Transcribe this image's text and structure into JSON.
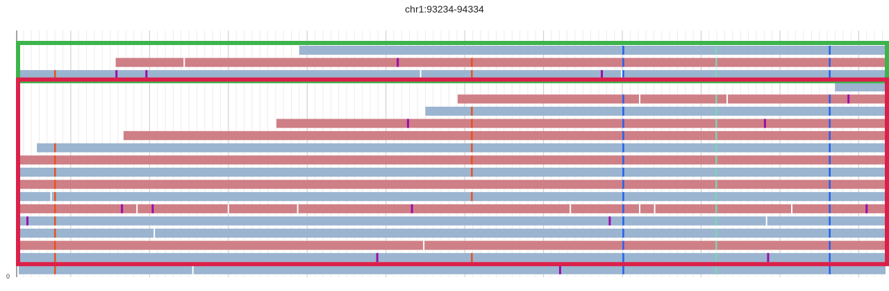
{
  "title": "chr1:93234-94334",
  "y_axis": {
    "zero_label": "0"
  },
  "colors": {
    "forward_read": "#cf7f86",
    "reverse_read": "#9bb4d0",
    "selection_green": "#3cb44b",
    "selection_red": "#dc1f4a",
    "mismatch_orange": "#e8521d",
    "mismatch_blue": "#1f62f0",
    "mismatch_teal": "#7fd3b2",
    "insertion_purple": "#9a0fa6",
    "deletion_white": "#ffffff",
    "grid_minor": "#ececec",
    "grid_major": "#c8c8c8"
  },
  "groups": [
    {
      "name": "green-group",
      "color": "selection_green",
      "rows": [
        0,
        2
      ]
    },
    {
      "name": "red-group",
      "color": "selection_red",
      "rows": [
        3,
        17
      ]
    }
  ],
  "chart_data": {
    "type": "pileup",
    "region": {
      "chrom": "chr1",
      "start": 93234,
      "end": 94334
    },
    "reads": [
      {
        "row": 0,
        "start": 93590,
        "end": 94334,
        "strand": "-"
      },
      {
        "row": 1,
        "start": 93357,
        "end": 94334,
        "strand": "+"
      },
      {
        "row": 2,
        "start": 93234,
        "end": 94334,
        "strand": "-"
      },
      {
        "row": 3,
        "start": 94394,
        "end": 94334,
        "strand": "-",
        "note": "clipped"
      },
      {
        "row": 3,
        "start": 94391,
        "end": 94334,
        "strand": "-"
      },
      {
        "row": 4,
        "start": 93791,
        "end": 94334,
        "strand": "+"
      },
      {
        "row": 5,
        "start": 93750,
        "end": 94334,
        "strand": "-"
      },
      {
        "row": 6,
        "start": 93561,
        "end": 94334,
        "strand": "+"
      },
      {
        "row": 7,
        "start": 93367,
        "end": 94334,
        "strand": "+"
      },
      {
        "row": 8,
        "start": 93257,
        "end": 94334,
        "strand": "-"
      },
      {
        "row": 9,
        "start": 93234,
        "end": 94334,
        "strand": "+"
      },
      {
        "row": 10,
        "start": 93234,
        "end": 94334,
        "strand": "-"
      },
      {
        "row": 11,
        "start": 93234,
        "end": 94334,
        "strand": "+"
      },
      {
        "row": 12,
        "start": 93234,
        "end": 94334,
        "strand": "-"
      },
      {
        "row": 13,
        "start": 93234,
        "end": 94334,
        "strand": "+"
      },
      {
        "row": 14,
        "start": 93234,
        "end": 94334,
        "strand": "-"
      },
      {
        "row": 15,
        "start": 93234,
        "end": 94334,
        "strand": "-"
      },
      {
        "row": 16,
        "start": 93234,
        "end": 94334,
        "strand": "+"
      },
      {
        "row": 17,
        "start": 93234,
        "end": 94334,
        "strand": "-"
      },
      {
        "row": 18,
        "start": 93234,
        "end": 94334,
        "strand": "-"
      }
    ],
    "variant_columns": [
      {
        "pos": 94001,
        "kind": "mismatch",
        "color": "mismatch_blue"
      },
      {
        "pos": 94119,
        "kind": "mismatch",
        "color": "mismatch_teal"
      },
      {
        "pos": 94263,
        "kind": "mismatch",
        "color": "mismatch_blue"
      }
    ],
    "marks": [
      {
        "row": 1,
        "pos": 93444,
        "kind": "deletion"
      },
      {
        "row": 1,
        "pos": 93715,
        "kind": "insertion"
      },
      {
        "row": 1,
        "pos": 93809,
        "kind": "mismatch",
        "color": "mismatch_orange"
      },
      {
        "row": 2,
        "pos": 93280,
        "kind": "mismatch",
        "color": "mismatch_orange"
      },
      {
        "row": 2,
        "pos": 93358,
        "kind": "insertion"
      },
      {
        "row": 2,
        "pos": 93396,
        "kind": "insertion"
      },
      {
        "row": 2,
        "pos": 93744,
        "kind": "deletion"
      },
      {
        "row": 2,
        "pos": 93809,
        "kind": "mismatch",
        "color": "mismatch_orange"
      },
      {
        "row": 2,
        "pos": 93974,
        "kind": "insertion"
      },
      {
        "row": 2,
        "pos": 93999,
        "kind": "deletion"
      },
      {
        "row": 4,
        "pos": 94022,
        "kind": "deletion"
      },
      {
        "row": 4,
        "pos": 94133,
        "kind": "deletion"
      },
      {
        "row": 4,
        "pos": 94287,
        "kind": "insertion"
      },
      {
        "row": 5,
        "pos": 93809,
        "kind": "mismatch",
        "color": "mismatch_orange"
      },
      {
        "row": 6,
        "pos": 93728,
        "kind": "insertion"
      },
      {
        "row": 6,
        "pos": 93809,
        "kind": "mismatch",
        "color": "mismatch_orange"
      },
      {
        "row": 6,
        "pos": 94181,
        "kind": "insertion"
      },
      {
        "row": 7,
        "pos": 93809,
        "kind": "mismatch",
        "color": "mismatch_orange"
      },
      {
        "row": 8,
        "pos": 93280,
        "kind": "mismatch",
        "color": "mismatch_orange"
      },
      {
        "row": 8,
        "pos": 93809,
        "kind": "mismatch",
        "color": "mismatch_orange"
      },
      {
        "row": 9,
        "pos": 93280,
        "kind": "mismatch",
        "color": "mismatch_orange"
      },
      {
        "row": 9,
        "pos": 93809,
        "kind": "mismatch",
        "color": "mismatch_orange"
      },
      {
        "row": 10,
        "pos": 93280,
        "kind": "mismatch",
        "color": "mismatch_orange"
      },
      {
        "row": 10,
        "pos": 93809,
        "kind": "mismatch",
        "color": "mismatch_orange"
      },
      {
        "row": 11,
        "pos": 93280,
        "kind": "mismatch",
        "color": "mismatch_orange"
      },
      {
        "row": 12,
        "pos": 93275,
        "kind": "deletion"
      },
      {
        "row": 12,
        "pos": 93280,
        "kind": "mismatch",
        "color": "mismatch_orange"
      },
      {
        "row": 12,
        "pos": 93809,
        "kind": "mismatch",
        "color": "mismatch_orange"
      },
      {
        "row": 13,
        "pos": 93280,
        "kind": "mismatch",
        "color": "mismatch_orange"
      },
      {
        "row": 13,
        "pos": 93365,
        "kind": "insertion"
      },
      {
        "row": 13,
        "pos": 93384,
        "kind": "deletion"
      },
      {
        "row": 13,
        "pos": 93404,
        "kind": "insertion"
      },
      {
        "row": 13,
        "pos": 93500,
        "kind": "deletion"
      },
      {
        "row": 13,
        "pos": 93588,
        "kind": "deletion"
      },
      {
        "row": 13,
        "pos": 93733,
        "kind": "insertion"
      },
      {
        "row": 13,
        "pos": 93934,
        "kind": "deletion"
      },
      {
        "row": 13,
        "pos": 94022,
        "kind": "deletion"
      },
      {
        "row": 13,
        "pos": 94041,
        "kind": "deletion"
      },
      {
        "row": 13,
        "pos": 94215,
        "kind": "deletion"
      },
      {
        "row": 13,
        "pos": 94310,
        "kind": "insertion"
      },
      {
        "row": 14,
        "pos": 93245,
        "kind": "insertion"
      },
      {
        "row": 14,
        "pos": 93280,
        "kind": "mismatch",
        "color": "mismatch_orange"
      },
      {
        "row": 14,
        "pos": 93984,
        "kind": "insertion"
      },
      {
        "row": 14,
        "pos": 94183,
        "kind": "deletion"
      },
      {
        "row": 15,
        "pos": 93280,
        "kind": "mismatch",
        "color": "mismatch_orange"
      },
      {
        "row": 15,
        "pos": 93406,
        "kind": "deletion"
      },
      {
        "row": 16,
        "pos": 93280,
        "kind": "mismatch",
        "color": "mismatch_orange"
      },
      {
        "row": 16,
        "pos": 93748,
        "kind": "deletion"
      },
      {
        "row": 17,
        "pos": 93280,
        "kind": "mismatch",
        "color": "mismatch_orange"
      },
      {
        "row": 17,
        "pos": 93689,
        "kind": "insertion"
      },
      {
        "row": 17,
        "pos": 93809,
        "kind": "mismatch",
        "color": "mismatch_orange"
      },
      {
        "row": 17,
        "pos": 94185,
        "kind": "insertion"
      },
      {
        "row": 18,
        "pos": 93280,
        "kind": "mismatch",
        "color": "mismatch_orange"
      },
      {
        "row": 18,
        "pos": 93455,
        "kind": "deletion"
      },
      {
        "row": 18,
        "pos": 93921,
        "kind": "insertion"
      }
    ],
    "grid": true
  }
}
